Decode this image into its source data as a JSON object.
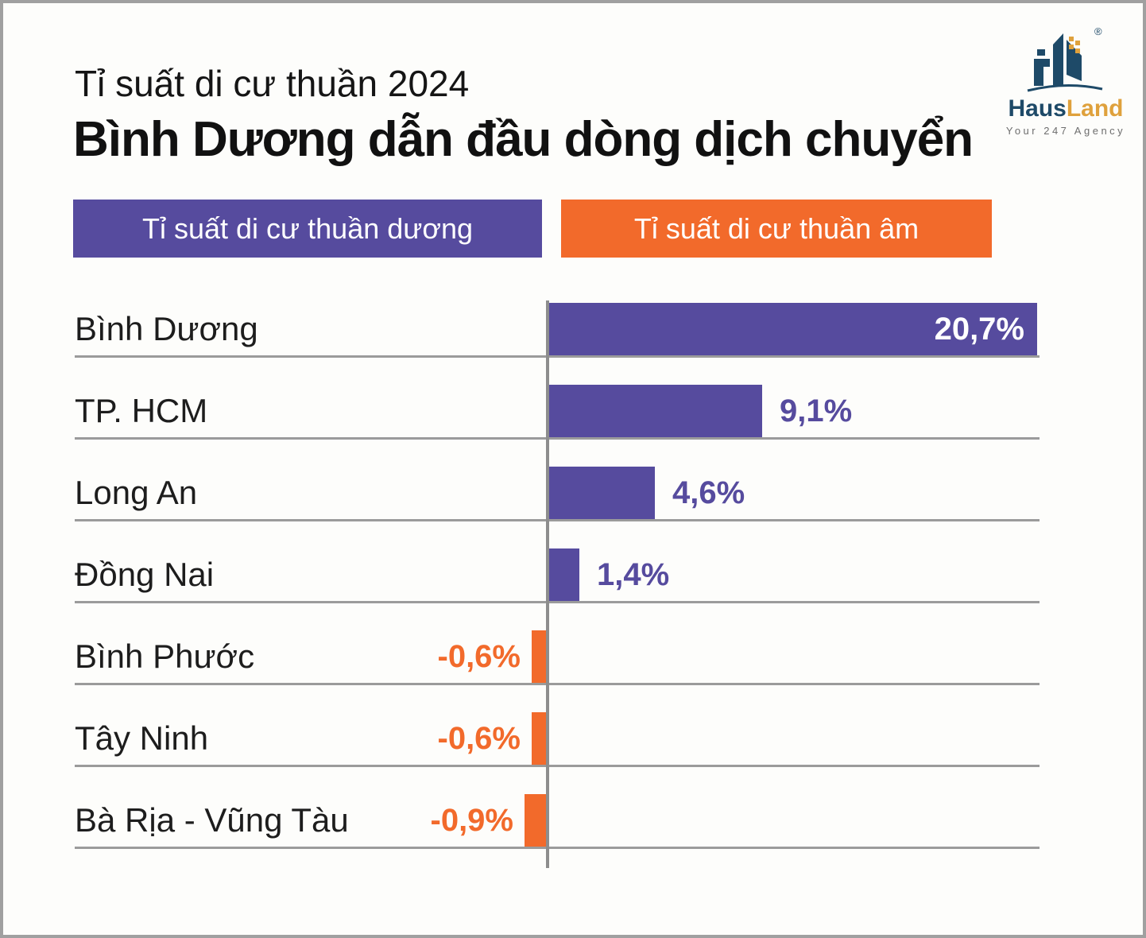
{
  "header": {
    "title": "Tỉ suất di cư thuần 2024",
    "subtitle": "Bình Dương dẫn đầu dòng dịch chuyển"
  },
  "logo": {
    "brand_part1": "Haus",
    "brand_part2": "Land",
    "tagline": "Your 247 Agency",
    "registered_mark": "®",
    "navy_color": "#1e4a68",
    "gold_color": "#dfa13c"
  },
  "legend": {
    "positive_label": "Tỉ suất di cư thuần dương",
    "negative_label": "Tỉ suất di cư thuần âm"
  },
  "chart_data": {
    "type": "bar",
    "orientation": "horizontal",
    "title": "Tỉ suất di cư thuần 2024 — Bình Dương dẫn đầu dòng dịch chuyển",
    "unit": "%",
    "categories": [
      "Bình Dương",
      "TP. HCM",
      "Long An",
      "Đồng Nai",
      "Bình Phước",
      "Tây Ninh",
      "Bà Rịa - Vũng Tàu"
    ],
    "values": [
      20.7,
      9.1,
      4.6,
      1.4,
      -0.6,
      -0.6,
      -0.9
    ],
    "value_labels": [
      "20,7%",
      "9,1%",
      "4,6%",
      "1,4%",
      "-0,6%",
      "-0,6%",
      "-0,9%"
    ],
    "series_names": [
      "Tỉ suất di cư thuần dương",
      "Tỉ suất di cư thuần âm"
    ],
    "positive_color": "#564b9e",
    "negative_color": "#f26a2b",
    "xlim": [
      -1.5,
      20.7
    ],
    "grid": "horizontal row separators",
    "legend_position": "top",
    "value_label_style": "first bar inside-white, positives purple right of bar, negatives orange left of bar"
  }
}
